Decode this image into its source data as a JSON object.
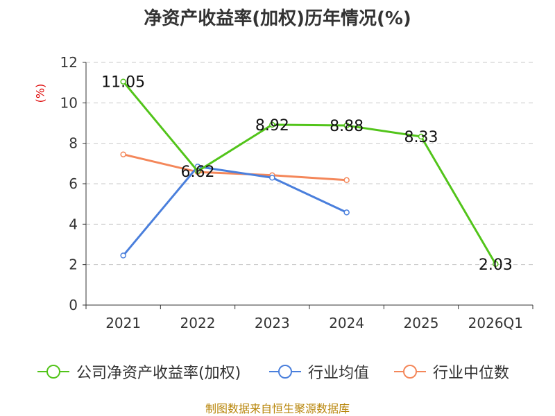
{
  "chart_data": {
    "type": "line",
    "title": "净资产收益率(加权)历年情况(%)",
    "ylabel": "(%)",
    "xlabel": "",
    "categories": [
      "2021",
      "2022",
      "2023",
      "2024",
      "2025",
      "2026Q1"
    ],
    "ylim": [
      0,
      12
    ],
    "yticks": [
      0,
      2,
      4,
      6,
      8,
      10,
      12
    ],
    "grid": true,
    "legend_position": "bottom",
    "series": [
      {
        "name": "公司净资产收益率(加权)",
        "color": "#52c41a",
        "values": [
          11.05,
          6.62,
          8.92,
          8.88,
          8.33,
          2.03
        ],
        "labels": [
          "11.05",
          "6.62",
          "8.92",
          "8.88",
          "8.33",
          "2.03"
        ]
      },
      {
        "name": "行业均值",
        "color": "#4a7fdc",
        "values": [
          2.45,
          6.85,
          6.3,
          4.58,
          null,
          null
        ]
      },
      {
        "name": "行业中位数",
        "color": "#f4875a",
        "values": [
          7.45,
          6.58,
          6.42,
          6.18,
          null,
          null
        ]
      }
    ]
  },
  "footer": "制图数据来自恒生聚源数据库"
}
